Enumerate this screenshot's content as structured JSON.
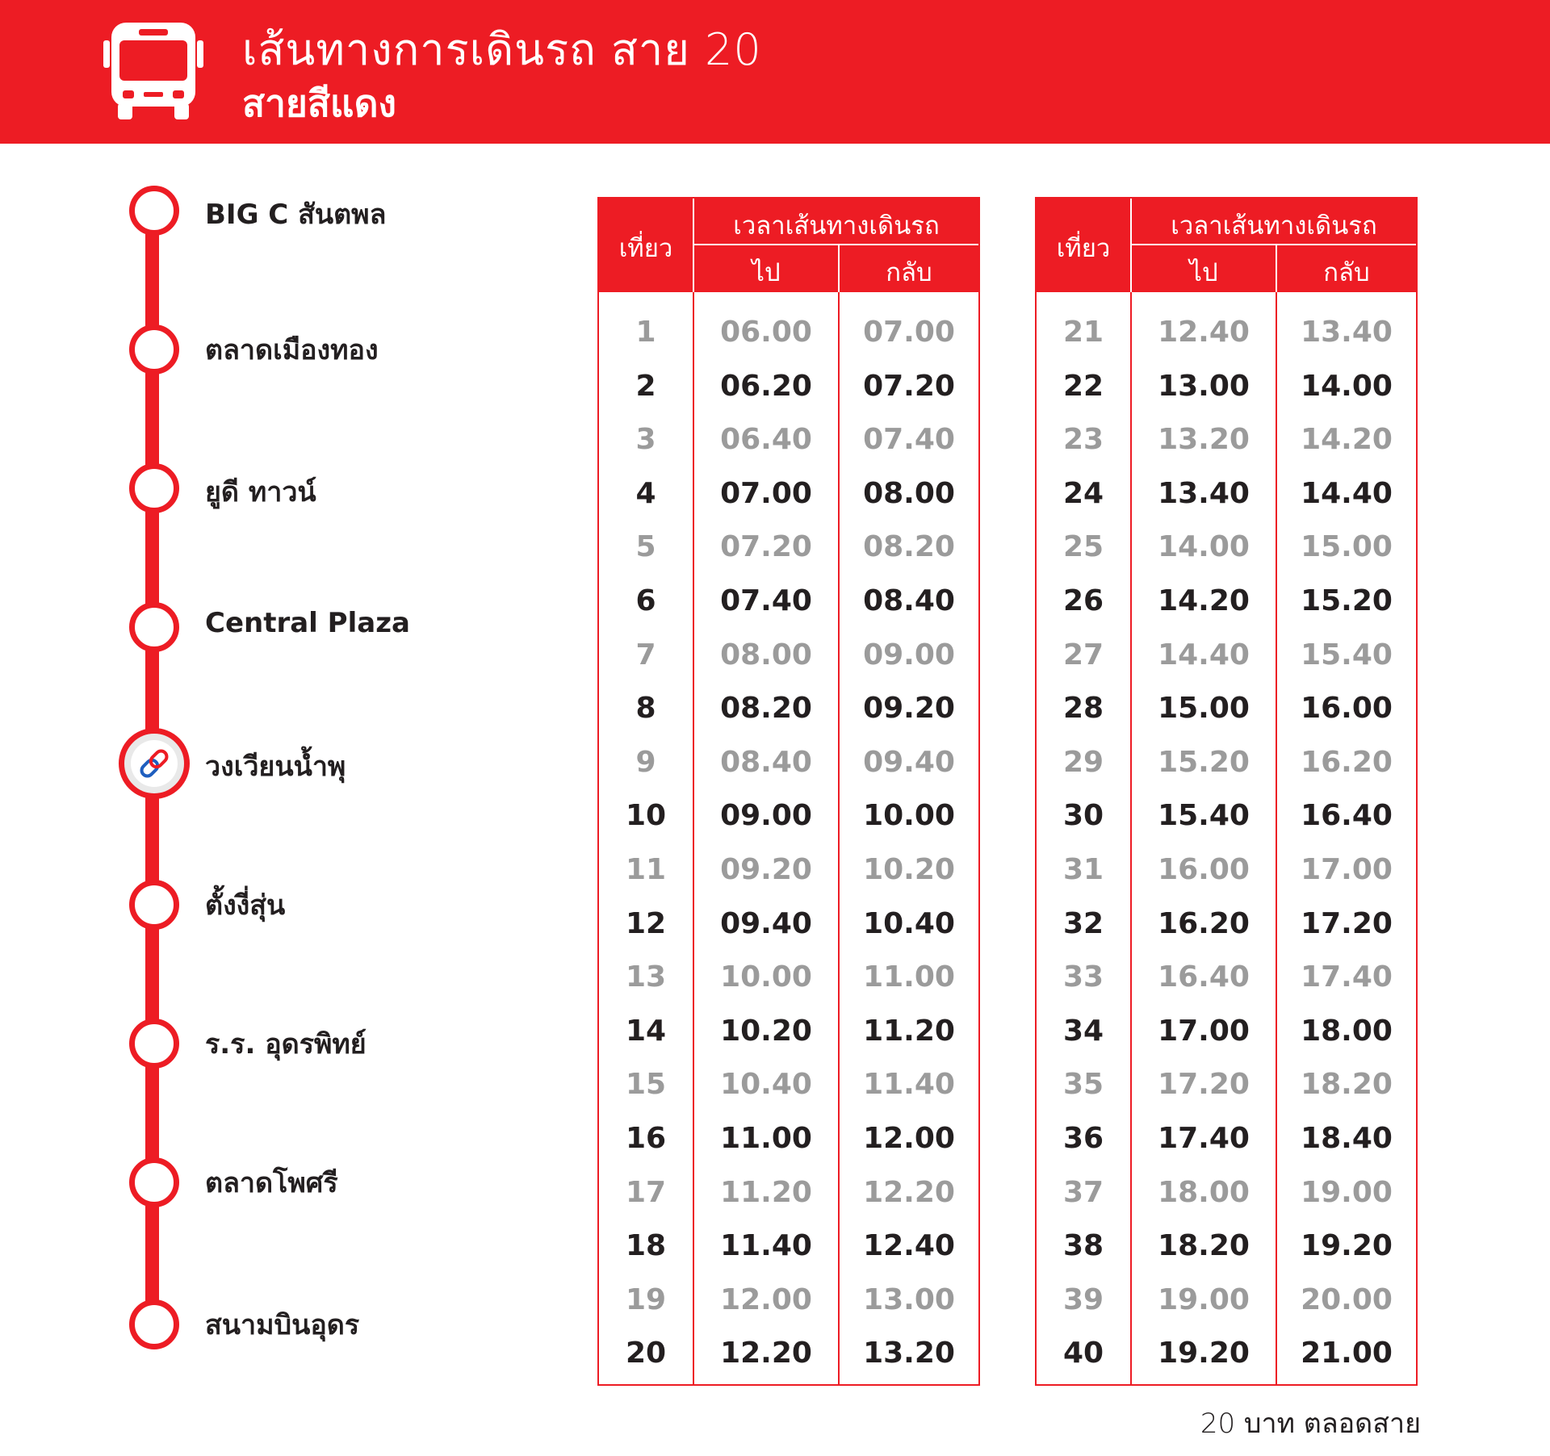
{
  "header": {
    "title": "เส้นทางการเดินรถ สาย 20",
    "subtitle": "สายสีแดง",
    "icon": "bus-icon",
    "background_color": "#ed1c24"
  },
  "route": {
    "line_color": "#ed1c24",
    "stops": [
      {
        "label": "BIG C สันตพล",
        "icon": "stop-circle-icon"
      },
      {
        "label": "ตลาดเมืองทอง",
        "icon": "stop-circle-icon"
      },
      {
        "label": "ยูดี ทาวน์",
        "icon": "stop-circle-icon"
      },
      {
        "label": "Central Plaza",
        "icon": "stop-circle-icon"
      },
      {
        "label": "วงเวียนน้ำพุ",
        "icon": "transfer-link-icon"
      },
      {
        "label": "ตั้งงี่สุ่น",
        "icon": "stop-circle-icon"
      },
      {
        "label": "ร.ร. อุดรพิทย์",
        "icon": "stop-circle-icon"
      },
      {
        "label": "ตลาดโพศรี",
        "icon": "stop-circle-icon"
      },
      {
        "label": "สนามบินอุดร",
        "icon": "stop-circle-icon"
      }
    ]
  },
  "schedule": {
    "header": {
      "trip": "เที่ยว",
      "time": "เวลาเส้นทางเดินรถ",
      "outbound": "ไป",
      "return": "กลับ"
    },
    "tables": [
      {
        "rows": [
          [
            "1",
            "06.00",
            "07.00"
          ],
          [
            "2",
            "06.20",
            "07.20"
          ],
          [
            "3",
            "06.40",
            "07.40"
          ],
          [
            "4",
            "07.00",
            "08.00"
          ],
          [
            "5",
            "07.20",
            "08.20"
          ],
          [
            "6",
            "07.40",
            "08.40"
          ],
          [
            "7",
            "08.00",
            "09.00"
          ],
          [
            "8",
            "08.20",
            "09.20"
          ],
          [
            "9",
            "08.40",
            "09.40"
          ],
          [
            "10",
            "09.00",
            "10.00"
          ],
          [
            "11",
            "09.20",
            "10.20"
          ],
          [
            "12",
            "09.40",
            "10.40"
          ],
          [
            "13",
            "10.00",
            "11.00"
          ],
          [
            "14",
            "10.20",
            "11.20"
          ],
          [
            "15",
            "10.40",
            "11.40"
          ],
          [
            "16",
            "11.00",
            "12.00"
          ],
          [
            "17",
            "11.20",
            "12.20"
          ],
          [
            "18",
            "11.40",
            "12.40"
          ],
          [
            "19",
            "12.00",
            "13.00"
          ],
          [
            "20",
            "12.20",
            "13.20"
          ]
        ]
      },
      {
        "rows": [
          [
            "21",
            "12.40",
            "13.40"
          ],
          [
            "22",
            "13.00",
            "14.00"
          ],
          [
            "23",
            "13.20",
            "14.20"
          ],
          [
            "24",
            "13.40",
            "14.40"
          ],
          [
            "25",
            "14.00",
            "15.00"
          ],
          [
            "26",
            "14.20",
            "15.20"
          ],
          [
            "27",
            "14.40",
            "15.40"
          ],
          [
            "28",
            "15.00",
            "16.00"
          ],
          [
            "29",
            "15.20",
            "16.20"
          ],
          [
            "30",
            "15.40",
            "16.40"
          ],
          [
            "31",
            "16.00",
            "17.00"
          ],
          [
            "32",
            "16.20",
            "17.20"
          ],
          [
            "33",
            "16.40",
            "17.40"
          ],
          [
            "34",
            "17.00",
            "18.00"
          ],
          [
            "35",
            "17.20",
            "18.20"
          ],
          [
            "36",
            "17.40",
            "18.40"
          ],
          [
            "37",
            "18.00",
            "19.00"
          ],
          [
            "38",
            "18.20",
            "19.20"
          ],
          [
            "39",
            "19.00",
            "20.00"
          ],
          [
            "40",
            "19.20",
            "21.00"
          ]
        ]
      }
    ]
  },
  "fare_note": "20 บาท ตลอดสาย",
  "colors": {
    "accent": "#ed1c24",
    "text_dark": "#231f20",
    "text_light": "#9b9b9b"
  }
}
